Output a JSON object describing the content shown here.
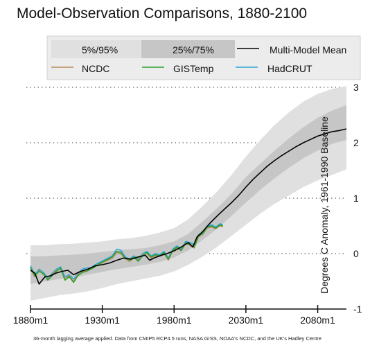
{
  "chart_data": {
    "type": "line",
    "title": "Model-Observation Comparisons, 1880-2100",
    "ylabel": "Degrees C Anomaly, 1961-1990 Baseline",
    "footnote": "36-month lagging average applied. Data from CMIP5 RCP4.5 runs, NASA GISS, NOAA's NCDC, and the UK's Hadley Centre",
    "xlim": [
      1880,
      2100
    ],
    "ylim": [
      -1,
      3
    ],
    "x_ticks": [
      {
        "value": 1880,
        "label": "1880m1"
      },
      {
        "value": 1930,
        "label": "1930m1"
      },
      {
        "value": 1980,
        "label": "1980m1"
      },
      {
        "value": 2030,
        "label": "2030m1"
      },
      {
        "value": 2080,
        "label": "2080m1"
      }
    ],
    "y_ticks": [
      {
        "value": -1,
        "label": "-1"
      },
      {
        "value": 0,
        "label": "0"
      },
      {
        "value": 1,
        "label": "1"
      },
      {
        "value": 2,
        "label": "2"
      },
      {
        "value": 3,
        "label": "3"
      }
    ],
    "grid": "horizontal-dotted",
    "legend": {
      "position": "top",
      "entries": [
        {
          "label": "5%/95%",
          "kind": "band",
          "color": "#e0e0e0"
        },
        {
          "label": "25%/75%",
          "kind": "band",
          "color": "#c6c6c6"
        },
        {
          "label": "Multi-Model Mean",
          "kind": "line",
          "color": "#000000"
        },
        {
          "label": "NCDC",
          "kind": "line",
          "color": "#b78a5a"
        },
        {
          "label": "GISTemp",
          "kind": "line",
          "color": "#2ca02c"
        },
        {
          "label": "HadCRUT",
          "kind": "line",
          "color": "#2aa7d6"
        }
      ]
    },
    "bands": {
      "x": [
        1880,
        1890,
        1900,
        1910,
        1920,
        1930,
        1940,
        1950,
        1960,
        1970,
        1980,
        1990,
        2000,
        2010,
        2020,
        2030,
        2040,
        2050,
        2060,
        2070,
        2080,
        2090,
        2100
      ],
      "p5": [
        -0.85,
        -0.8,
        -0.75,
        -0.72,
        -0.68,
        -0.62,
        -0.55,
        -0.5,
        -0.45,
        -0.4,
        -0.32,
        -0.2,
        -0.05,
        0.12,
        0.32,
        0.52,
        0.72,
        0.9,
        1.05,
        1.2,
        1.32,
        1.42,
        1.52
      ],
      "p25": [
        -0.55,
        -0.5,
        -0.46,
        -0.43,
        -0.38,
        -0.33,
        -0.28,
        -0.24,
        -0.2,
        -0.15,
        -0.07,
        0.06,
        0.25,
        0.45,
        0.68,
        0.92,
        1.15,
        1.36,
        1.55,
        1.72,
        1.86,
        1.98,
        2.05
      ],
      "p75": [
        -0.05,
        -0.05,
        -0.03,
        -0.02,
        0.0,
        0.03,
        0.06,
        0.08,
        0.1,
        0.15,
        0.22,
        0.36,
        0.58,
        0.82,
        1.08,
        1.38,
        1.62,
        1.86,
        2.08,
        2.28,
        2.45,
        2.58,
        2.68
      ],
      "p95": [
        0.15,
        0.15,
        0.17,
        0.18,
        0.2,
        0.22,
        0.26,
        0.28,
        0.32,
        0.38,
        0.46,
        0.62,
        0.86,
        1.12,
        1.42,
        1.75,
        2.05,
        2.32,
        2.55,
        2.74,
        2.88,
        2.97,
        3.02
      ]
    },
    "series": [
      {
        "name": "Multi-Model Mean",
        "color": "#000000",
        "x": [
          1880,
          1883,
          1886,
          1890,
          1894,
          1898,
          1902,
          1906,
          1910,
          1915,
          1920,
          1925,
          1930,
          1935,
          1940,
          1945,
          1950,
          1955,
          1960,
          1963,
          1966,
          1970,
          1975,
          1980,
          1985,
          1990,
          1993,
          1996,
          2000,
          2005,
          2010,
          2015,
          2020,
          2025,
          2030,
          2035,
          2040,
          2045,
          2050,
          2055,
          2060,
          2065,
          2070,
          2075,
          2080,
          2085,
          2090,
          2095,
          2100
        ],
        "y": [
          -0.3,
          -0.35,
          -0.55,
          -0.42,
          -0.4,
          -0.35,
          -0.32,
          -0.3,
          -0.38,
          -0.32,
          -0.28,
          -0.22,
          -0.2,
          -0.17,
          -0.12,
          -0.08,
          -0.1,
          -0.06,
          -0.03,
          -0.12,
          -0.08,
          -0.04,
          0.0,
          0.05,
          0.12,
          0.2,
          0.12,
          0.3,
          0.4,
          0.55,
          0.68,
          0.8,
          0.92,
          1.05,
          1.2,
          1.34,
          1.46,
          1.58,
          1.68,
          1.77,
          1.85,
          1.93,
          2.0,
          2.06,
          2.12,
          2.16,
          2.2,
          2.22,
          2.25
        ]
      },
      {
        "name": "NCDC",
        "color": "#b78a5a",
        "x": [
          1880,
          1883,
          1886,
          1889,
          1892,
          1895,
          1898,
          1901,
          1904,
          1907,
          1910,
          1913,
          1916,
          1919,
          1922,
          1925,
          1928,
          1931,
          1934,
          1937,
          1940,
          1943,
          1946,
          1949,
          1952,
          1955,
          1958,
          1961,
          1964,
          1967,
          1970,
          1973,
          1976,
          1979,
          1982,
          1985,
          1988,
          1991,
          1994,
          1997,
          2000,
          2003,
          2006,
          2009,
          2012,
          2014
        ],
        "y": [
          -0.28,
          -0.42,
          -0.3,
          -0.38,
          -0.46,
          -0.38,
          -0.3,
          -0.28,
          -0.45,
          -0.4,
          -0.5,
          -0.38,
          -0.32,
          -0.3,
          -0.28,
          -0.22,
          -0.2,
          -0.15,
          -0.12,
          -0.08,
          0.02,
          0.0,
          -0.1,
          -0.14,
          -0.08,
          -0.12,
          -0.02,
          0.0,
          -0.08,
          -0.04,
          -0.05,
          0.0,
          -0.12,
          0.05,
          0.1,
          0.05,
          0.18,
          0.15,
          0.1,
          0.3,
          0.35,
          0.46,
          0.48,
          0.45,
          0.5,
          0.48
        ]
      },
      {
        "name": "GISTemp",
        "color": "#2ca02c",
        "x": [
          1880,
          1883,
          1886,
          1889,
          1892,
          1895,
          1898,
          1901,
          1904,
          1907,
          1910,
          1913,
          1916,
          1919,
          1922,
          1925,
          1928,
          1931,
          1934,
          1937,
          1940,
          1943,
          1946,
          1949,
          1952,
          1955,
          1958,
          1961,
          1964,
          1967,
          1970,
          1973,
          1976,
          1979,
          1982,
          1985,
          1988,
          1991,
          1994,
          1997,
          2000,
          2003,
          2006,
          2009,
          2012,
          2014
        ],
        "y": [
          -0.25,
          -0.4,
          -0.32,
          -0.36,
          -0.48,
          -0.4,
          -0.32,
          -0.26,
          -0.48,
          -0.42,
          -0.52,
          -0.4,
          -0.34,
          -0.32,
          -0.28,
          -0.24,
          -0.18,
          -0.14,
          -0.1,
          -0.06,
          0.04,
          0.02,
          -0.08,
          -0.12,
          -0.06,
          -0.14,
          -0.04,
          0.02,
          -0.06,
          -0.02,
          -0.04,
          0.02,
          -0.1,
          0.06,
          0.12,
          0.06,
          0.2,
          0.16,
          0.12,
          0.32,
          0.36,
          0.48,
          0.5,
          0.46,
          0.52,
          0.5
        ]
      },
      {
        "name": "HadCRUT",
        "color": "#2aa7d6",
        "x": [
          1880,
          1883,
          1886,
          1889,
          1892,
          1895,
          1898,
          1901,
          1904,
          1907,
          1910,
          1913,
          1916,
          1919,
          1922,
          1925,
          1928,
          1931,
          1934,
          1937,
          1940,
          1943,
          1946,
          1949,
          1952,
          1955,
          1958,
          1961,
          1964,
          1967,
          1970,
          1973,
          1976,
          1979,
          1982,
          1985,
          1988,
          1991,
          1994,
          1997,
          2000,
          2003,
          2006,
          2009,
          2012,
          2014
        ],
        "y": [
          -0.22,
          -0.38,
          -0.28,
          -0.34,
          -0.44,
          -0.36,
          -0.28,
          -0.24,
          -0.42,
          -0.38,
          -0.46,
          -0.36,
          -0.28,
          -0.26,
          -0.26,
          -0.2,
          -0.16,
          -0.12,
          -0.08,
          -0.04,
          0.08,
          0.06,
          -0.06,
          -0.1,
          -0.04,
          -0.1,
          0.0,
          0.04,
          -0.04,
          0.0,
          -0.02,
          0.04,
          -0.08,
          0.08,
          0.14,
          0.08,
          0.22,
          0.2,
          0.16,
          0.34,
          0.38,
          0.5,
          0.52,
          0.48,
          0.54,
          0.52
        ]
      }
    ]
  }
}
